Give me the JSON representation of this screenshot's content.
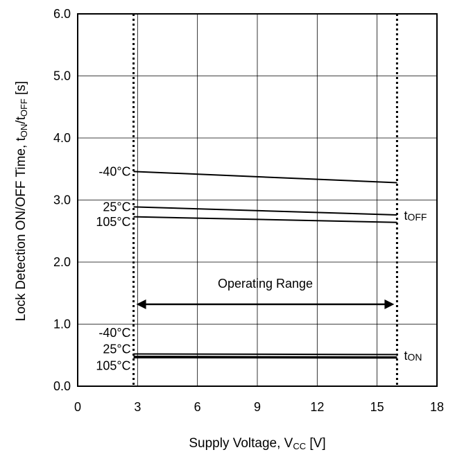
{
  "chart_data": {
    "type": "line",
    "xlabel": {
      "main": "Supply Voltage, V",
      "sub": "CC",
      "unit": " [V]"
    },
    "ylabel": {
      "main": "Lock Detection ON/OFF Time, t",
      "sub1": "ON",
      "mid": "/t",
      "sub2": "OFF",
      "unit": " [s]"
    },
    "xlim": [
      0,
      18
    ],
    "ylim": [
      0,
      6
    ],
    "xticks": [
      0,
      3,
      6,
      9,
      12,
      15,
      18
    ],
    "yticks": [
      0,
      1,
      2,
      3,
      4,
      5,
      6
    ],
    "xtick_labels": [
      "0",
      "3",
      "6",
      "9",
      "12",
      "15",
      "18"
    ],
    "ytick_labels": [
      "0.0",
      "1.0",
      "2.0",
      "3.0",
      "4.0",
      "5.0",
      "6.0"
    ],
    "grid": true,
    "operating_range": {
      "x": [
        2.8,
        16
      ],
      "label": "Operating Range",
      "arrow_y": 1.32
    },
    "groups": [
      {
        "name_main": "t",
        "name_sub": "OFF",
        "label_y": 2.75
      },
      {
        "name_main": "t",
        "name_sub": "ON",
        "label_y": 0.49
      }
    ],
    "series": [
      {
        "group": 0,
        "label": "-40°C",
        "x": [
          2.8,
          16
        ],
        "y": [
          3.46,
          3.28
        ]
      },
      {
        "group": 0,
        "label": "25°C",
        "x": [
          2.8,
          16
        ],
        "y": [
          2.89,
          2.76
        ]
      },
      {
        "group": 0,
        "label": "105°C",
        "x": [
          2.8,
          16
        ],
        "y": [
          2.73,
          2.64
        ]
      },
      {
        "group": 1,
        "label": "-40°C",
        "x": [
          2.8,
          16
        ],
        "y": [
          0.52,
          0.51
        ]
      },
      {
        "group": 1,
        "label": "25°C",
        "x": [
          2.8,
          16
        ],
        "y": [
          0.48,
          0.47
        ]
      },
      {
        "group": 1,
        "label": "105°C",
        "x": [
          2.8,
          16
        ],
        "y": [
          0.46,
          0.455
        ]
      }
    ],
    "series_label_y": [
      3.46,
      2.89,
      2.65,
      0.86,
      0.6,
      0.33
    ]
  }
}
